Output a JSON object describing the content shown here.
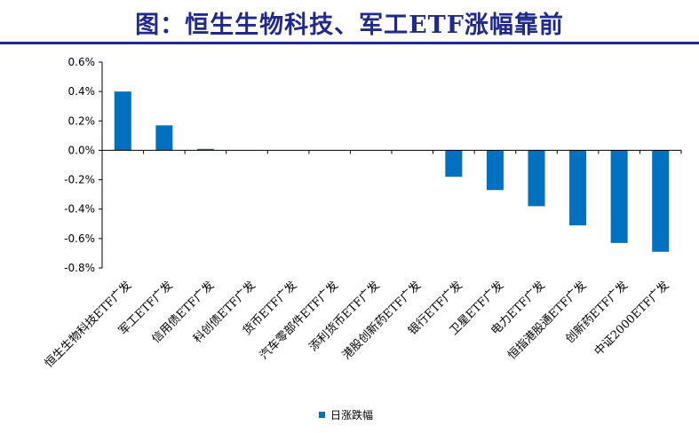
{
  "title": "图：恒生生物科技、军工ETF涨幅靠前",
  "chart_data": {
    "type": "bar",
    "categories": [
      "恒生生物科技ETF广发",
      "军工ETF广发",
      "信用债ETF广发",
      "科创债ETF广发",
      "货币ETF广发",
      "汽车零部件ETF广发",
      "添利货币ETF广发",
      "港股创新药ETF广发",
      "银行ETF广发",
      "卫星ETF广发",
      "电力ETF广发",
      "恒指港股通ETF广发",
      "创新药ETF广发",
      "中证2000ETF广发"
    ],
    "series": [
      {
        "name": "日涨跌幅",
        "values": [
          0.4,
          0.17,
          0.01,
          0.0,
          0.0,
          0.0,
          0.0,
          0.0,
          -0.18,
          -0.27,
          -0.38,
          -0.51,
          -0.63,
          -0.69
        ]
      }
    ],
    "ylim": [
      -0.8,
      0.6
    ],
    "yticks": [
      "0.6%",
      "0.4%",
      "0.2%",
      "0.0%",
      "-0.2%",
      "-0.4%",
      "-0.6%",
      "-0.8%"
    ],
    "ytick_values": [
      0.6,
      0.4,
      0.2,
      0.0,
      -0.2,
      -0.4,
      -0.6,
      -0.8
    ],
    "legend_position": "bottom",
    "grid": false,
    "bar_color": "#0070c0"
  }
}
